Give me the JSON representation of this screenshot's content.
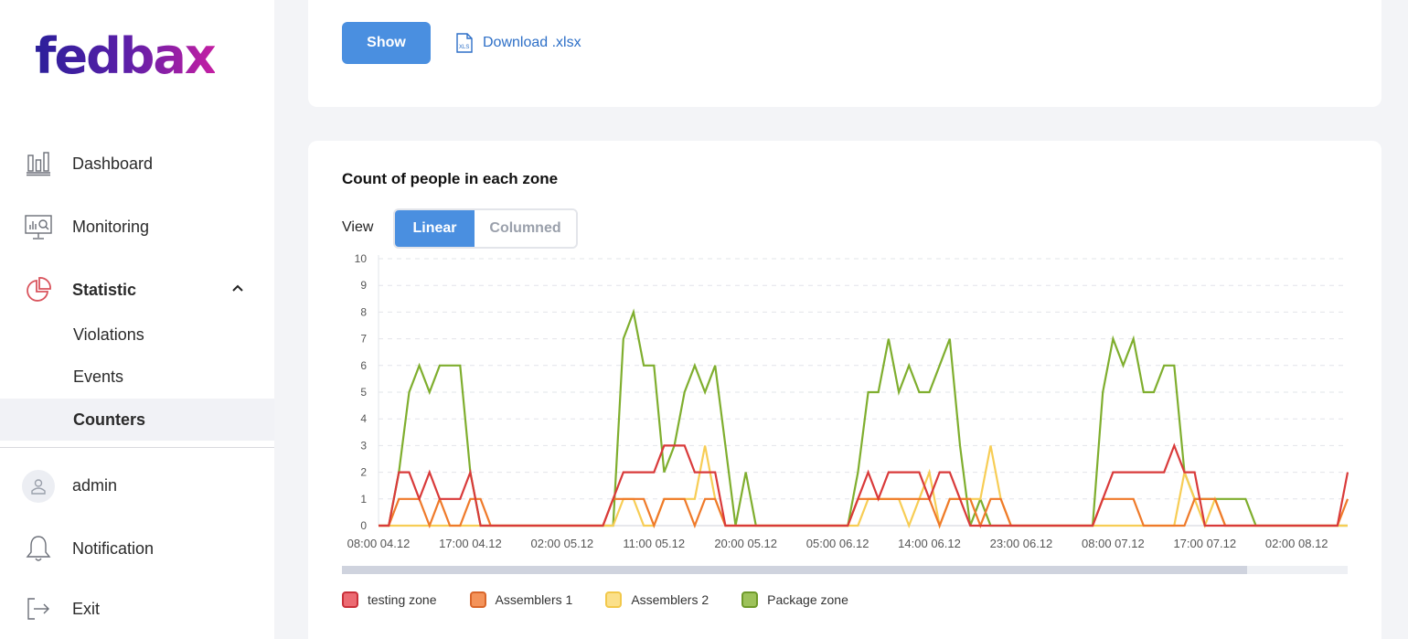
{
  "brand": {
    "logo": "fedbax"
  },
  "sidebar": {
    "items": [
      {
        "label": "Dashboard",
        "icon": "dashboard-bar-chart-icon"
      },
      {
        "label": "Monitoring",
        "icon": "monitor-icon"
      },
      {
        "label": "Statistic",
        "icon": "pie-chart-icon",
        "expanded": true
      }
    ],
    "subitems": [
      {
        "label": "Violations"
      },
      {
        "label": "Events"
      },
      {
        "label": "Counters",
        "active": true
      }
    ],
    "user": {
      "label": "admin"
    },
    "notification": {
      "label": "Notification"
    },
    "exit": {
      "label": "Exit"
    }
  },
  "toolbar": {
    "show_label": "Show",
    "download_label": "Download .xlsx"
  },
  "chart_section": {
    "title": "Count of people in each zone",
    "view_label": "View",
    "view_options": [
      "Linear",
      "Columned"
    ],
    "view_selected": "Linear"
  },
  "colors": {
    "accent": "#4a8fe0",
    "testing_zone": "#d93a3a",
    "assemblers_1": "#ef7a2a",
    "assemblers_2": "#f7cd55",
    "package_zone": "#7fae2e"
  },
  "chart_data": {
    "type": "line",
    "ylim": [
      0,
      10
    ],
    "y_ticks": [
      0,
      1,
      2,
      3,
      4,
      5,
      6,
      7,
      8,
      9,
      10
    ],
    "x_tick_labels": [
      "08:00 04.12",
      "17:00 04.12",
      "02:00 05.12",
      "11:00 05.12",
      "20:00 05.12",
      "05:00 06.12",
      "14:00 06.12",
      "23:00 06.12",
      "08:00 07.12",
      "17:00 07.12",
      "02:00 08.12"
    ],
    "x_start": "08:00 04.12",
    "x_step_hours": 1,
    "grid": true,
    "legend_position": "bottom-left",
    "series": [
      {
        "name": "testing zone",
        "color": "#d93a3a",
        "values": [
          0,
          0,
          2,
          2,
          1,
          2,
          1,
          1,
          1,
          2,
          0,
          0,
          0,
          0,
          0,
          0,
          0,
          0,
          0,
          0,
          0,
          0,
          0,
          1,
          2,
          2,
          2,
          2,
          3,
          3,
          3,
          2,
          2,
          2,
          0,
          0,
          0,
          0,
          0,
          0,
          0,
          0,
          0,
          0,
          0,
          0,
          0,
          1,
          2,
          1,
          2,
          2,
          2,
          2,
          1,
          2,
          2,
          1,
          0,
          0,
          0,
          0,
          0,
          0,
          0,
          0,
          0,
          0,
          0,
          0,
          0,
          1,
          2,
          2,
          2,
          2,
          2,
          2,
          3,
          2,
          2,
          0,
          0,
          0,
          0,
          0,
          0,
          0,
          0,
          0,
          0,
          0,
          0,
          0,
          0,
          2
        ]
      },
      {
        "name": "Assemblers 1",
        "color": "#ef7a2a",
        "values": [
          0,
          0,
          1,
          1,
          1,
          0,
          1,
          0,
          0,
          1,
          1,
          0,
          0,
          0,
          0,
          0,
          0,
          0,
          0,
          0,
          0,
          0,
          0,
          1,
          1,
          1,
          1,
          0,
          1,
          1,
          1,
          0,
          1,
          1,
          0,
          0,
          0,
          0,
          0,
          0,
          0,
          0,
          0,
          0,
          0,
          0,
          0,
          1,
          1,
          1,
          1,
          1,
          1,
          1,
          1,
          0,
          1,
          1,
          1,
          0,
          1,
          1,
          0,
          0,
          0,
          0,
          0,
          0,
          0,
          0,
          0,
          1,
          1,
          1,
          1,
          0,
          0,
          0,
          0,
          0,
          1,
          1,
          1,
          0,
          0,
          0,
          0,
          0,
          0,
          0,
          0,
          0,
          0,
          0,
          0,
          1
        ]
      },
      {
        "name": "Assemblers 2",
        "color": "#f7cd55",
        "values": [
          0,
          0,
          0,
          0,
          0,
          0,
          0,
          0,
          0,
          0,
          0,
          0,
          0,
          0,
          0,
          0,
          0,
          0,
          0,
          0,
          0,
          0,
          0,
          0,
          1,
          1,
          0,
          0,
          1,
          1,
          1,
          1,
          3,
          1,
          0,
          0,
          0,
          0,
          0,
          0,
          0,
          0,
          0,
          0,
          0,
          0,
          0,
          0,
          1,
          1,
          1,
          1,
          0,
          1,
          2,
          0,
          1,
          1,
          1,
          1,
          3,
          1,
          0,
          0,
          0,
          0,
          0,
          0,
          0,
          0,
          0,
          0,
          0,
          0,
          0,
          0,
          0,
          0,
          0,
          2,
          1,
          0,
          1,
          0,
          0,
          0,
          0,
          0,
          0,
          0,
          0,
          0,
          0,
          0,
          0,
          0
        ]
      },
      {
        "name": "Package zone",
        "color": "#7fae2e",
        "values": [
          0,
          0,
          2,
          5,
          6,
          5,
          6,
          6,
          6,
          2,
          0,
          0,
          0,
          0,
          0,
          0,
          0,
          0,
          0,
          0,
          0,
          0,
          0,
          0,
          7,
          8,
          6,
          6,
          2,
          3,
          5,
          6,
          5,
          6,
          3,
          0,
          2,
          0,
          0,
          0,
          0,
          0,
          0,
          0,
          0,
          0,
          0,
          2,
          5,
          5,
          7,
          5,
          6,
          5,
          5,
          6,
          7,
          3,
          0,
          1,
          0,
          0,
          0,
          0,
          0,
          0,
          0,
          0,
          0,
          0,
          0,
          5,
          7,
          6,
          7,
          5,
          5,
          6,
          6,
          2,
          1,
          1,
          1,
          1,
          1,
          1,
          0,
          0,
          0,
          0,
          0,
          0,
          0,
          0,
          0,
          0
        ]
      }
    ]
  }
}
